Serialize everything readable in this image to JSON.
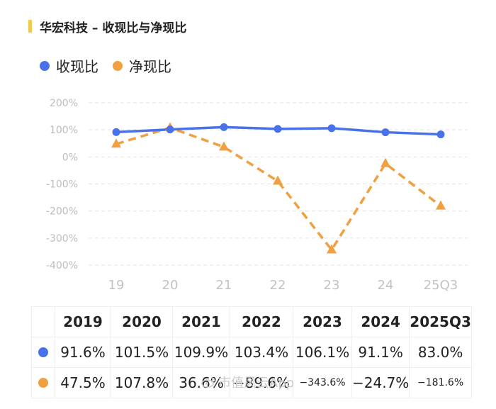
{
  "header": {
    "title": "华宏科技 – 收现比与净现比"
  },
  "colors": {
    "accent_bar": "#f2c94c",
    "blue": "#4a72e8",
    "orange": "#f0a041"
  },
  "chart_data": {
    "type": "line",
    "title": "华宏科技 – 收现比与净现比",
    "categories": [
      "19",
      "20",
      "21",
      "22",
      "23",
      "24",
      "25Q3"
    ],
    "series": [
      {
        "name": "收现比",
        "values": [
          91.6,
          101.5,
          109.9,
          103.4,
          106.1,
          91.1,
          83.0
        ],
        "style": "solid-circle"
      },
      {
        "name": "净现比",
        "values": [
          47.5,
          107.8,
          36.6,
          -89.6,
          -343.6,
          -24.7,
          -181.6
        ],
        "style": "dashed-triangle"
      }
    ],
    "yticks": [
      "200%",
      "100%",
      "0%",
      "-100%",
      "-200%",
      "-300%",
      "-400%"
    ],
    "ylim": [
      -400,
      200
    ],
    "grid": true,
    "legend": "top-left"
  },
  "table": {
    "headers": [
      "2019",
      "2020",
      "2021",
      "2022",
      "2023",
      "2024",
      "2025Q3"
    ],
    "rows": [
      {
        "series": "收现比",
        "values": [
          "91.6%",
          "101.5%",
          "109.9%",
          "103.4%",
          "106.1%",
          "91.1%",
          "83.0%"
        ]
      },
      {
        "series": "净现比",
        "values": [
          "47.5%",
          "107.8%",
          "36.6%",
          "−89.6%",
          "−343.6%",
          "−24.7%",
          "−181.6%"
        ]
      }
    ]
  },
  "watermark": {
    "text": "市值风云App"
  }
}
